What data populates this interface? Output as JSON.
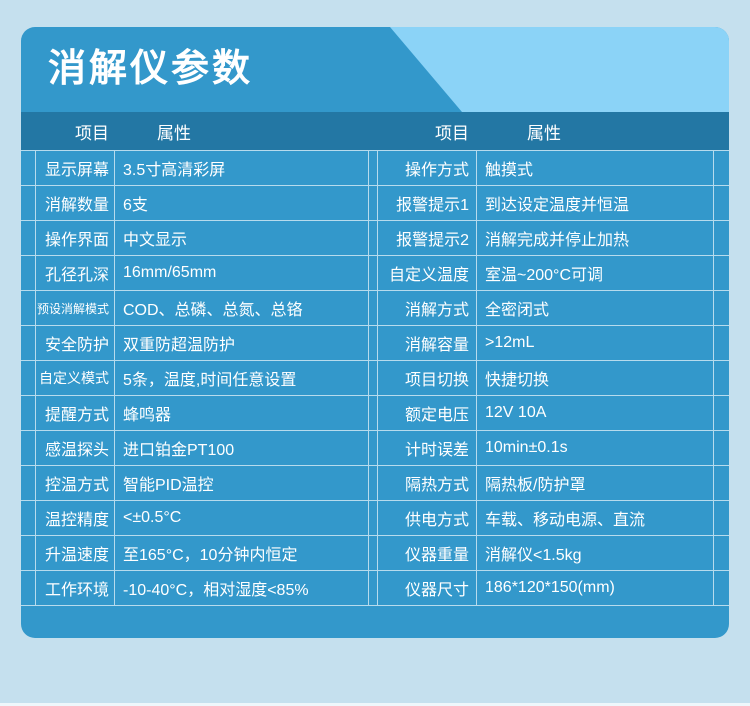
{
  "header": {
    "title": "消解仪参数"
  },
  "columns": {
    "item": "项目",
    "attr": "属性"
  },
  "table": {
    "left_rows": [
      {
        "label": "显示屏幕",
        "value": "3.5寸高清彩屏"
      },
      {
        "label": "消解数量",
        "value": "6支"
      },
      {
        "label": "操作界面",
        "value": "中文显示"
      },
      {
        "label": "孔径孔深",
        "value": "16mm/65mm"
      },
      {
        "label": "预设消解模式",
        "value": "COD、总磷、总氮、总铬"
      },
      {
        "label": "安全防护",
        "value": "双重防超温防护"
      },
      {
        "label": "自定义模式",
        "value": "5条，温度,时间任意设置"
      },
      {
        "label": "提醒方式",
        "value": "蜂鸣器"
      },
      {
        "label": "感温探头",
        "value": "进口铂金PT100"
      },
      {
        "label": "控温方式",
        "value": "智能PID温控"
      },
      {
        "label": "温控精度",
        "value": "<±0.5°C"
      },
      {
        "label": "升温速度",
        "value": "至165°C，10分钟内恒定"
      },
      {
        "label": "工作环境",
        "value": "-10-40°C，相对湿度<85%"
      }
    ],
    "right_rows": [
      {
        "label": "操作方式",
        "value": "触摸式"
      },
      {
        "label": "报警提示1",
        "value": "到达设定温度并恒温"
      },
      {
        "label": "报警提示2",
        "value": "消解完成并停止加热"
      },
      {
        "label": "自定义温度",
        "value": "室温~200°C可调"
      },
      {
        "label": "消解方式",
        "value": "全密闭式"
      },
      {
        "label": "消解容量",
        "value": ">12mL"
      },
      {
        "label": "项目切换",
        "value": "快捷切换"
      },
      {
        "label": "额定电压",
        "value": "12V 10A"
      },
      {
        "label": "计时误差",
        "value": "10min±0.1s"
      },
      {
        "label": "隔热方式",
        "value": "隔热板/防护罩"
      },
      {
        "label": "供电方式",
        "value": "车载、移动电源、直流"
      },
      {
        "label": "仪器重量",
        "value": "消解仪<1.5kg"
      },
      {
        "label": "仪器尺寸",
        "value": "186*120*150(mm)"
      }
    ]
  },
  "colors": {
    "page_bg": "#c5e0ee",
    "card_bg": "#3398cb",
    "band_bg": "#2377a4",
    "accent_light": "#8bd3f7",
    "grid_line": "rgba(255,255,255,0.65)",
    "text": "#ffffff"
  }
}
